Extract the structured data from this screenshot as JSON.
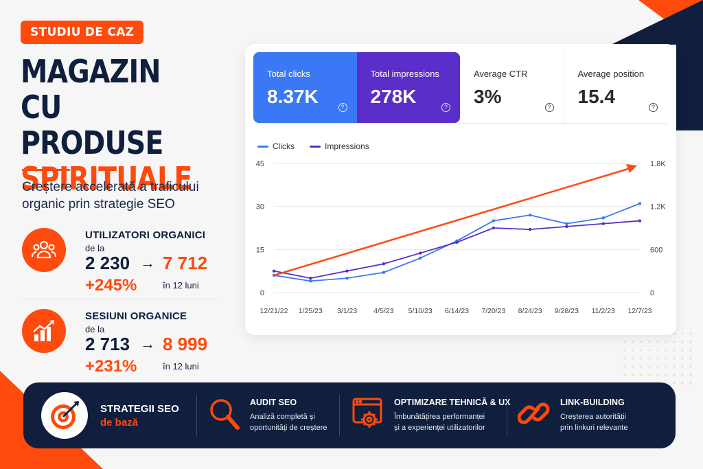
{
  "badge": "STUDIU DE CAZ",
  "title": {
    "line1": "MAGAZIN CU",
    "line2": "PRODUSE",
    "line3": "SPIRITUALE"
  },
  "subtitle": "Creștere accelerată a traficului organic prin strategie SEO",
  "metrics": [
    {
      "title": "UTILIZATORI ORGANICI",
      "from_label": "de la",
      "from": "2 230",
      "arrow": "→",
      "to": "7 712",
      "pct": "+245%",
      "period": "în 12 luni",
      "icon": "users-icon"
    },
    {
      "title": "SESIUNI ORGANICE",
      "from_label": "de la",
      "from": "2 713",
      "arrow": "→",
      "to": "8 999",
      "pct": "+231%",
      "period": "în 12 luni",
      "icon": "growth-chart-icon"
    }
  ],
  "kpis": [
    {
      "label": "Total clicks",
      "value": "8.37K"
    },
    {
      "label": "Total impressions",
      "value": "278K"
    },
    {
      "label": "Average CTR",
      "value": "3%"
    },
    {
      "label": "Average position",
      "value": "15.4"
    }
  ],
  "colors": {
    "accent": "#ff4a0e",
    "navy": "#0f1f3d",
    "clicks": "#3b78f6",
    "impressions": "#5b2ec9"
  },
  "chart_data": {
    "type": "line",
    "x": [
      "12/21/22",
      "1/25/23",
      "3/1/23",
      "4/5/23",
      "5/10/23",
      "6/14/23",
      "7/20/23",
      "8/24/23",
      "9/28/23",
      "11/2/23",
      "12/7/23"
    ],
    "series": [
      {
        "name": "Clicks",
        "axis": "left",
        "values": [
          6,
          4,
          5,
          7,
          12,
          18,
          25,
          27,
          24,
          26,
          31
        ]
      },
      {
        "name": "Impressions",
        "axis": "right",
        "values": [
          300,
          200,
          300,
          400,
          550,
          700,
          900,
          880,
          920,
          960,
          1000
        ]
      }
    ],
    "y_left": {
      "range": [
        0,
        45
      ],
      "ticks": [
        "45",
        "30",
        "15",
        "0"
      ]
    },
    "y_right": {
      "range": [
        0,
        1800
      ],
      "ticks": [
        "1.8K",
        "1.2K",
        "600",
        "0"
      ]
    },
    "trend_arrow": {
      "from": [
        "12/21/22",
        6
      ],
      "to": [
        "12/7/23",
        45
      ],
      "color": "#ff4a0e"
    },
    "legend": "top-left",
    "grid": true
  },
  "band": {
    "strategy_line1": "STRATEGII SEO",
    "strategy_line2": "de bază",
    "features": [
      {
        "title": "AUDIT SEO",
        "desc1": "Analiză completă și",
        "desc2": "oportunități de creștere",
        "icon": "magnifier-icon"
      },
      {
        "title": "OPTIMIZARE TEHNICĂ & UX",
        "desc1": "Îmbunătățirea performanței",
        "desc2": "și a experienței utilizatorilor",
        "icon": "browser-gear-icon"
      },
      {
        "title": "LINK-BUILDING",
        "desc1": "Creșterea autorității",
        "desc2": "prin linkuri relevante",
        "icon": "chain-link-icon"
      }
    ]
  }
}
